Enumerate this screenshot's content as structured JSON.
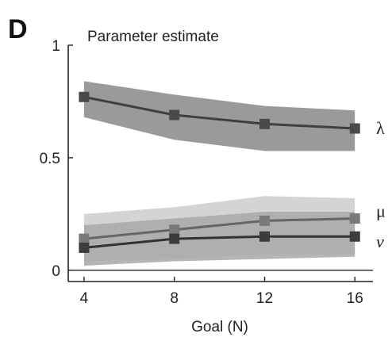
{
  "panel_label": "D",
  "chart_data": {
    "type": "line",
    "title": "Parameter estimate",
    "xlabel": "Goal (N)",
    "ylabel": "",
    "x": [
      4,
      8,
      12,
      16
    ],
    "xticks": [
      "4",
      "8",
      "12",
      "16"
    ],
    "yticks": [
      {
        "value": 0,
        "label": "0"
      },
      {
        "value": 0.5,
        "label": "0.5"
      },
      {
        "value": 1,
        "label": "1"
      }
    ],
    "xlim": [
      3.3,
      16.8
    ],
    "ylim": [
      -0.05,
      1.0
    ],
    "grid": false,
    "zero_line": true,
    "series": [
      {
        "name": "λ",
        "values": [
          0.77,
          0.69,
          0.65,
          0.63
        ],
        "band_lower": [
          0.68,
          0.58,
          0.53,
          0.53
        ],
        "band_upper": [
          0.84,
          0.78,
          0.73,
          0.71
        ],
        "line_color": "#3f3f3f",
        "marker_color": "#4a4a4a",
        "band_color": "#9a9a9a"
      },
      {
        "name": "μ",
        "values": [
          0.14,
          0.18,
          0.22,
          0.23
        ],
        "band_lower": [
          0.04,
          0.05,
          0.07,
          0.07
        ],
        "band_upper": [
          0.25,
          0.28,
          0.33,
          0.32
        ],
        "line_color": "#666666",
        "marker_color": "#7a7a7a",
        "band_color": "#cccccc"
      },
      {
        "name": "v",
        "values": [
          0.1,
          0.14,
          0.15,
          0.15
        ],
        "band_lower": [
          0.02,
          0.04,
          0.05,
          0.06
        ],
        "band_upper": [
          0.2,
          0.23,
          0.26,
          0.26
        ],
        "line_color": "#333333",
        "marker_color": "#3c3c3c",
        "band_color": "#a8a8a8"
      }
    ]
  }
}
